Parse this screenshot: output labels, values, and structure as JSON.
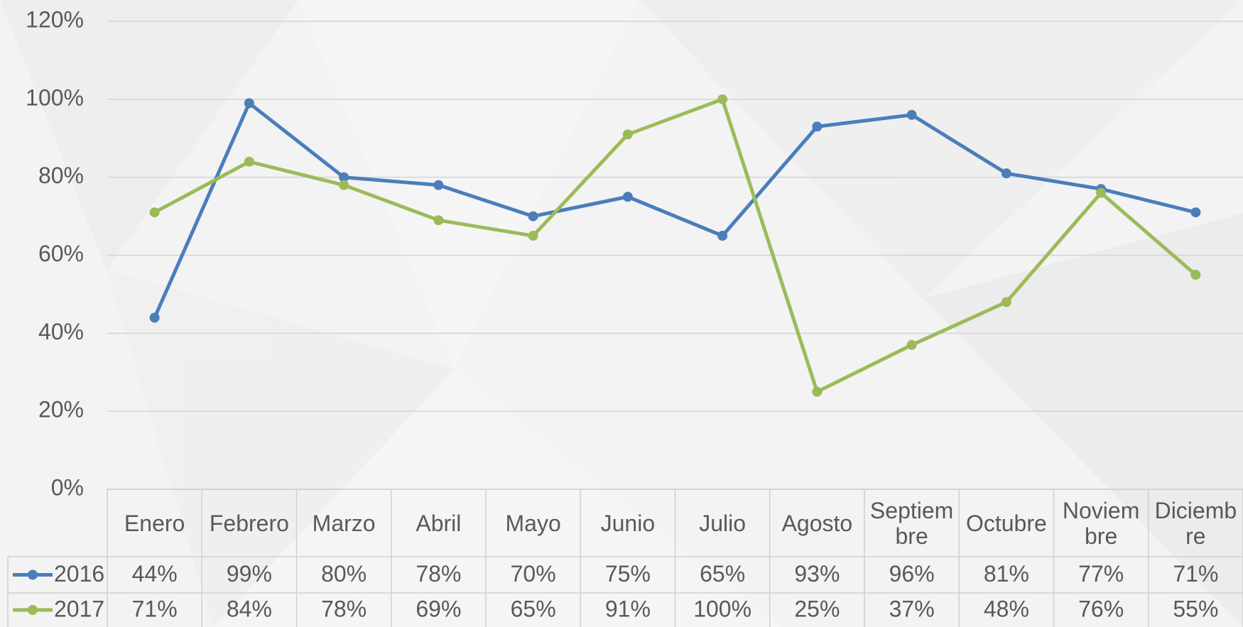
{
  "chart_data": {
    "type": "line",
    "categories": [
      "Enero",
      "Febrero",
      "Marzo",
      "Abril",
      "Mayo",
      "Junio",
      "Julio",
      "Agosto",
      "Septiembre",
      "Octubre",
      "Noviembre",
      "Diciembre"
    ],
    "series": [
      {
        "name": "2016",
        "color": "#4a7ebb",
        "values": [
          44,
          99,
          80,
          78,
          70,
          75,
          65,
          93,
          96,
          81,
          77,
          71
        ],
        "value_labels": [
          "44%",
          "99%",
          "80%",
          "78%",
          "70%",
          "75%",
          "65%",
          "93%",
          "96%",
          "81%",
          "77%",
          "71%"
        ]
      },
      {
        "name": "2017",
        "color": "#9bbb59",
        "values": [
          71,
          84,
          78,
          69,
          65,
          91,
          100,
          25,
          37,
          48,
          76,
          55
        ],
        "value_labels": [
          "71%",
          "84%",
          "78%",
          "69%",
          "65%",
          "91%",
          "100%",
          "25%",
          "37%",
          "48%",
          "76%",
          "55%"
        ]
      }
    ],
    "ylim": [
      0,
      120
    ],
    "yticks": [
      {
        "value": 0,
        "label": "0%"
      },
      {
        "value": 20,
        "label": "20%"
      },
      {
        "value": 40,
        "label": "40%"
      },
      {
        "value": 60,
        "label": "60%"
      },
      {
        "value": 80,
        "label": "80%"
      },
      {
        "value": 100,
        "label": "100%"
      },
      {
        "value": 120,
        "label": "120%"
      }
    ],
    "grid": true,
    "data_table": true
  }
}
